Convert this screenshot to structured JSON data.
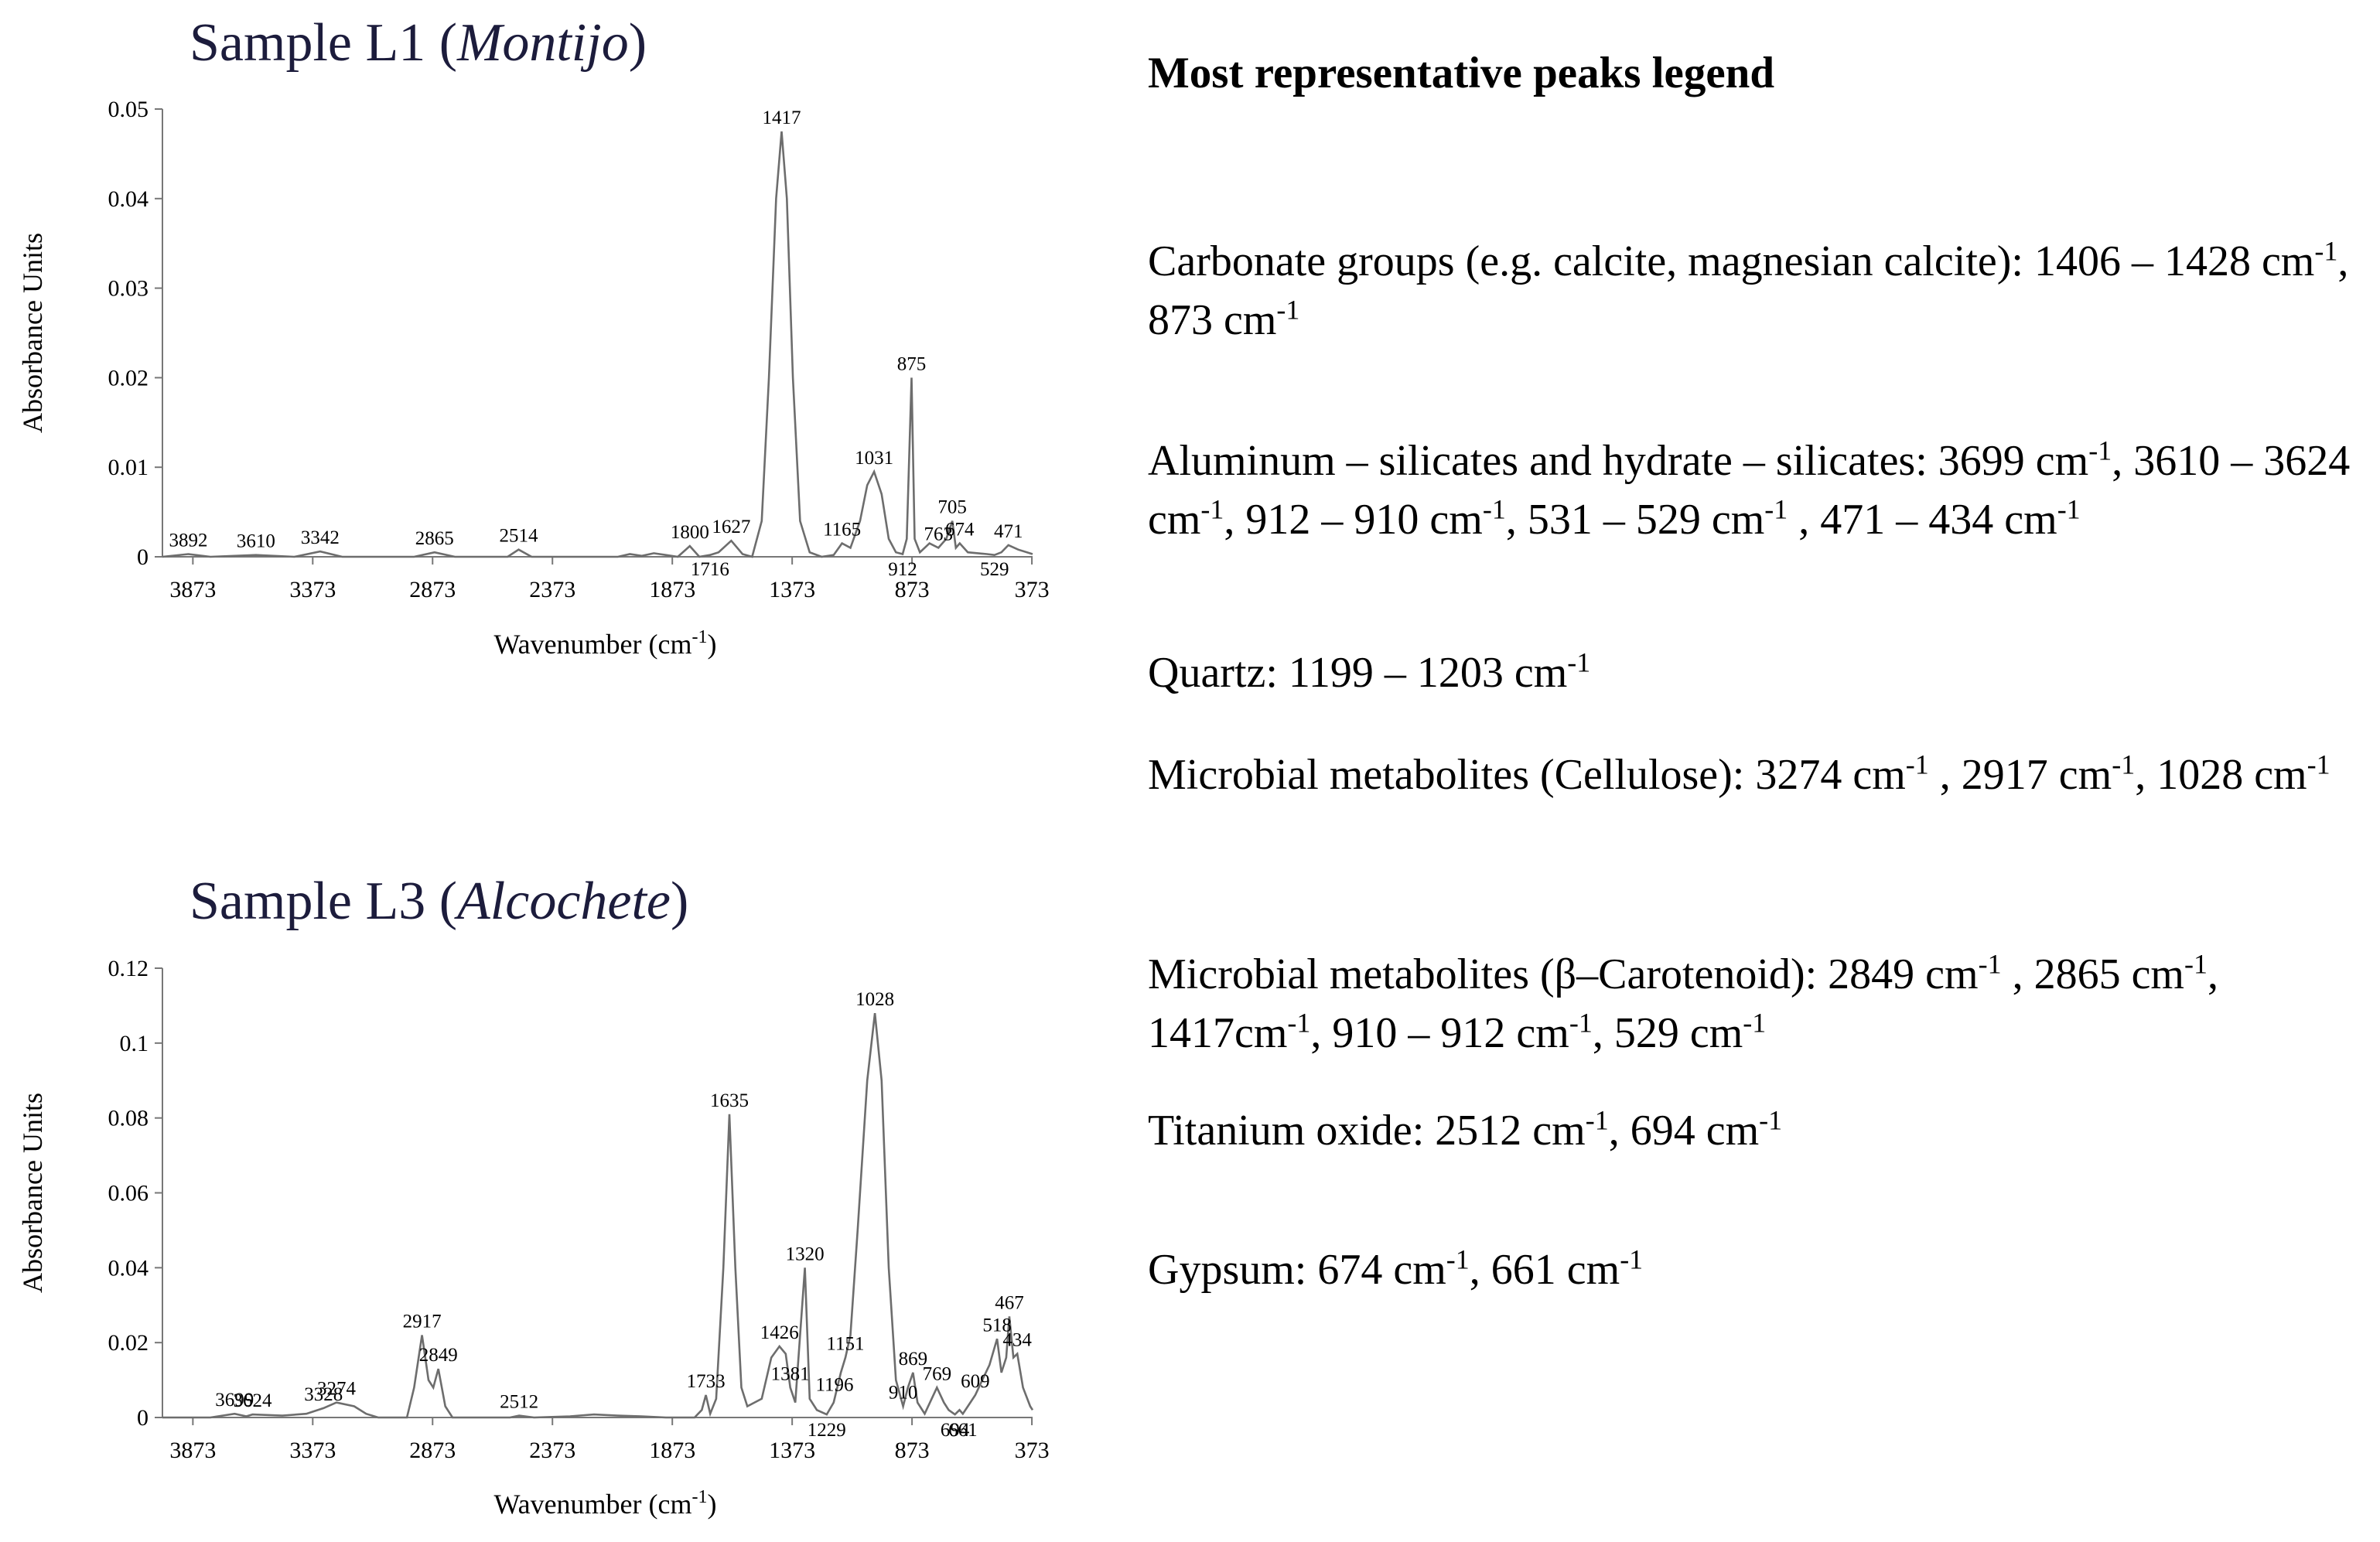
{
  "chart_data": [
    {
      "type": "line",
      "title": [
        "Sample L1 (",
        "Montijo",
        ")"
      ],
      "ylabel": "Absorbance Units",
      "xlabel": [
        "Wavenumber (cm",
        "-1",
        ")"
      ],
      "color": "#6d6d6d",
      "xlim": [
        4000,
        370
      ],
      "xticks": [
        3873,
        3373,
        2873,
        2373,
        1873,
        1373,
        873,
        373
      ],
      "ylim": [
        0,
        0.05
      ],
      "yticks": [
        0,
        0.01,
        0.02,
        0.03,
        0.04,
        0.05
      ],
      "x": [
        4000,
        3892,
        3800,
        3610,
        3450,
        3342,
        3250,
        2950,
        2865,
        2780,
        2560,
        2514,
        2460,
        2100,
        2050,
        2000,
        1950,
        1900,
        1850,
        1800,
        1760,
        1716,
        1680,
        1627,
        1580,
        1540,
        1500,
        1470,
        1440,
        1417,
        1395,
        1370,
        1340,
        1300,
        1250,
        1200,
        1165,
        1130,
        1090,
        1060,
        1031,
        1000,
        970,
        940,
        912,
        895,
        875,
        862,
        840,
        800,
        763,
        730,
        705,
        690,
        674,
        640,
        560,
        529,
        500,
        471,
        430,
        370
      ],
      "values": [
        0,
        0.0003,
        0,
        0.0002,
        0,
        0.0006,
        0,
        0,
        0.0005,
        0,
        0,
        0.0008,
        0,
        0,
        0.0003,
        0.0001,
        0.0004,
        0.0002,
        0,
        0.0012,
        0,
        0.0002,
        0.0005,
        0.0018,
        0.0003,
        0,
        0.004,
        0.02,
        0.04,
        0.0475,
        0.04,
        0.02,
        0.004,
        0.0005,
        0,
        0.0002,
        0.0015,
        0.001,
        0.004,
        0.008,
        0.0095,
        0.007,
        0.002,
        0.0005,
        0.0003,
        0.002,
        0.02,
        0.002,
        0.0005,
        0.0015,
        0.001,
        0.002,
        0.004,
        0.001,
        0.0015,
        0.0005,
        0.0003,
        0.0002,
        0.0005,
        0.0013,
        0.0008,
        0.0003
      ],
      "peaks": [
        3892,
        3610,
        3342,
        2865,
        2514,
        1800,
        1627,
        1417,
        1165,
        1031,
        875,
        763,
        705,
        674,
        471
      ],
      "peaks_below": [
        1716,
        912,
        529
      ]
    },
    {
      "type": "line",
      "title": [
        "Sample L3 (",
        "Alcochete",
        ")"
      ],
      "ylabel": "Absorbance Units",
      "xlabel": [
        "Wavenumber (cm",
        "-1",
        ")"
      ],
      "color": "#6d6d6d",
      "xlim": [
        4000,
        370
      ],
      "xticks": [
        3873,
        3373,
        2873,
        2373,
        1873,
        1373,
        873,
        373
      ],
      "ylim": [
        0,
        0.12
      ],
      "yticks": [
        0,
        0.02,
        0.04,
        0.06,
        0.08,
        0.1,
        0.12
      ],
      "x": [
        4000,
        3800,
        3699,
        3650,
        3624,
        3500,
        3400,
        3328,
        3274,
        3200,
        3150,
        3100,
        2980,
        2950,
        2917,
        2890,
        2870,
        2849,
        2820,
        2790,
        2550,
        2512,
        2450,
        2300,
        2200,
        2100,
        2000,
        1900,
        1780,
        1750,
        1733,
        1715,
        1690,
        1660,
        1635,
        1610,
        1585,
        1560,
        1500,
        1460,
        1426,
        1400,
        1381,
        1360,
        1320,
        1300,
        1270,
        1229,
        1200,
        1170,
        1151,
        1130,
        1100,
        1060,
        1028,
        1000,
        970,
        940,
        910,
        890,
        869,
        850,
        820,
        769,
        740,
        720,
        694,
        675,
        661,
        640,
        609,
        580,
        550,
        518,
        500,
        480,
        467,
        450,
        434,
        410,
        380,
        370
      ],
      "values": [
        0,
        0,
        0.001,
        0.0003,
        0.0008,
        0.0005,
        0.001,
        0.0025,
        0.004,
        0.003,
        0.001,
        0,
        0,
        0.008,
        0.022,
        0.01,
        0.008,
        0.013,
        0.003,
        0,
        0,
        0.0005,
        0,
        0.0003,
        0.0008,
        0.0005,
        0.0003,
        0,
        0,
        0.002,
        0.006,
        0.001,
        0.005,
        0.04,
        0.081,
        0.04,
        0.008,
        0.003,
        0.005,
        0.016,
        0.019,
        0.017,
        0.008,
        0.004,
        0.04,
        0.005,
        0.002,
        0.0008,
        0.004,
        0.012,
        0.016,
        0.022,
        0.05,
        0.09,
        0.108,
        0.09,
        0.04,
        0.01,
        0.003,
        0.008,
        0.012,
        0.004,
        0.001,
        0.008,
        0.004,
        0.002,
        0.0008,
        0.002,
        0.001,
        0.003,
        0.006,
        0.01,
        0.014,
        0.021,
        0.012,
        0.016,
        0.027,
        0.016,
        0.017,
        0.008,
        0.003,
        0.002
      ],
      "peaks": [
        3699,
        3624,
        3328,
        3274,
        2917,
        2849,
        2512,
        1733,
        1635,
        1426,
        1381,
        1320,
        1196,
        1151,
        1028,
        910,
        869,
        769,
        609,
        518,
        467,
        434
      ],
      "peaks_below": [
        1229,
        694,
        661
      ]
    }
  ],
  "legend": {
    "title": "Most representative peaks legend",
    "items": [
      [
        "Carbonate groups (e.g. calcite, magnesian calcite): 1406 – 1428 cm",
        "-1",
        ", 873 cm",
        "-1"
      ],
      [
        "Aluminum – silicates and hydrate – silicates: 3699 cm",
        "-1",
        ", 3610 – 3624 cm",
        "-1",
        ", 912 – 910 cm",
        "-1",
        ", 531 – 529 cm",
        "-1",
        " , 471 – 434 cm",
        "-1"
      ],
      [
        "Quartz: 1199 – 1203 cm",
        "-1"
      ],
      [
        "Microbial metabolites (Cellulose): 3274 cm",
        "-1",
        " , 2917 cm",
        "-1",
        ", 1028 cm",
        "-1"
      ],
      [
        "Microbial metabolites (β–Carotenoid): 2849 cm",
        "-1",
        " , 2865 cm",
        "-1",
        ", 1417cm",
        "-1",
        ", 910 – 912 cm",
        "-1",
        ", 529 cm",
        "-1"
      ],
      [
        "Titanium oxide: 2512 cm",
        "-1",
        ", 694 cm",
        "-1"
      ],
      [
        "Gypsum: 674 cm",
        "-1",
        ", 661 cm",
        "-1"
      ]
    ]
  }
}
